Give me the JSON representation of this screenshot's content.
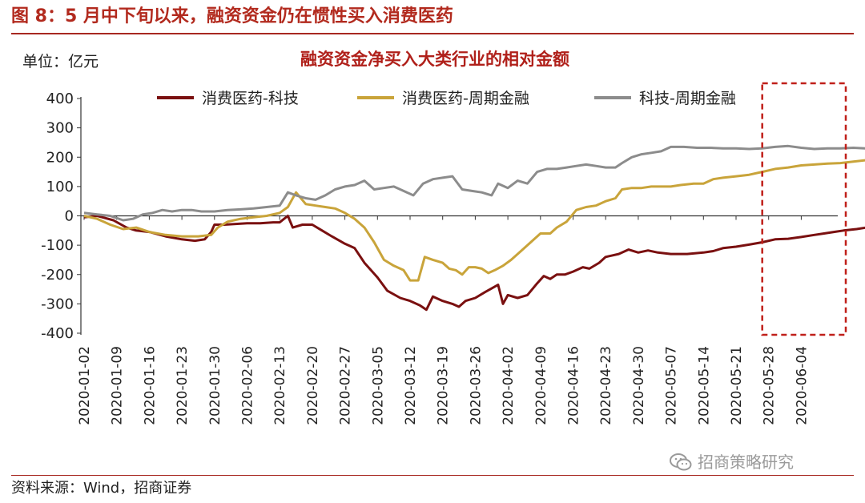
{
  "figure": {
    "title": "图 8：5 月中下旬以来，融资资金仍在惯性买入消费医药",
    "source": "资料来源：Wind，招商证券",
    "watermark": "招商策略研究",
    "watermark_icon": "wechat-icon"
  },
  "chart_data": {
    "type": "line",
    "title": "融资资金净买入大类行业的相对金额",
    "unit_label": "单位：亿元",
    "ylim": [
      -400,
      400
    ],
    "y_ticks": [
      -400,
      -300,
      -200,
      -100,
      0,
      100,
      200,
      300,
      400
    ],
    "x_ticks": [
      "2020-01-02",
      "2020-01-09",
      "2020-01-16",
      "2020-01-23",
      "2020-01-30",
      "2020-02-06",
      "2020-02-13",
      "2020-02-20",
      "2020-02-27",
      "2020-03-05",
      "2020-03-12",
      "2020-03-19",
      "2020-03-26",
      "2020-04-02",
      "2020-04-09",
      "2020-04-16",
      "2020-04-23",
      "2020-04-30",
      "2020-05-07",
      "2020-05-14",
      "2020-05-21",
      "2020-05-28",
      "2020-06-04"
    ],
    "grid": false,
    "legend_position": "top",
    "highlight_box": {
      "x_start": "2020-05-28",
      "x_end": "2020-06-05",
      "color": "#c0201a",
      "style": "dashed"
    },
    "series": [
      {
        "name": "消费医药-科技",
        "color": "#7a1010",
        "points": [
          [
            0,
            -5
          ],
          [
            0.4,
            0
          ],
          [
            0.9,
            -15
          ],
          [
            1.3,
            -40
          ],
          [
            1.6,
            -50
          ],
          [
            2,
            -55
          ],
          [
            2.5,
            -70
          ],
          [
            3,
            -80
          ],
          [
            3.4,
            -85
          ],
          [
            3.7,
            -80
          ],
          [
            3.9,
            -55
          ],
          [
            4,
            -30
          ],
          [
            4.3,
            -30
          ],
          [
            4.6,
            -28
          ],
          [
            5,
            -25
          ],
          [
            5.4,
            -25
          ],
          [
            5.8,
            -22
          ],
          [
            6,
            -22
          ],
          [
            6.25,
            0
          ],
          [
            6.4,
            -40
          ],
          [
            6.7,
            -30
          ],
          [
            7,
            -30
          ],
          [
            7.3,
            -50
          ],
          [
            7.6,
            -70
          ],
          [
            8,
            -95
          ],
          [
            8.3,
            -110
          ],
          [
            8.6,
            -160
          ],
          [
            9,
            -210
          ],
          [
            9.3,
            -255
          ],
          [
            9.7,
            -280
          ],
          [
            10,
            -290
          ],
          [
            10.3,
            -305
          ],
          [
            10.5,
            -320
          ],
          [
            10.7,
            -275
          ],
          [
            11,
            -290
          ],
          [
            11.3,
            -300
          ],
          [
            11.5,
            -310
          ],
          [
            11.7,
            -290
          ],
          [
            12,
            -280
          ],
          [
            12.3,
            -260
          ],
          [
            12.7,
            -235
          ],
          [
            12.85,
            -300
          ],
          [
            13,
            -270
          ],
          [
            13.3,
            -280
          ],
          [
            13.6,
            -270
          ],
          [
            13.9,
            -230
          ],
          [
            14.1,
            -205
          ],
          [
            14.3,
            -215
          ],
          [
            14.5,
            -200
          ],
          [
            14.75,
            -200
          ],
          [
            15,
            -190
          ],
          [
            15.3,
            -175
          ],
          [
            15.5,
            -180
          ],
          [
            15.8,
            -160
          ],
          [
            16,
            -140
          ],
          [
            16.4,
            -130
          ],
          [
            16.7,
            -115
          ],
          [
            17,
            -125
          ],
          [
            17.3,
            -118
          ],
          [
            17.6,
            -125
          ],
          [
            18,
            -130
          ],
          [
            18.5,
            -130
          ],
          [
            19,
            -125
          ],
          [
            19.3,
            -120
          ],
          [
            19.6,
            -110
          ],
          [
            20,
            -105
          ],
          [
            20.4,
            -98
          ],
          [
            20.8,
            -90
          ],
          [
            21.2,
            -80
          ],
          [
            21.6,
            -78
          ],
          [
            22,
            -72
          ],
          [
            22.4,
            -65
          ],
          [
            22.7,
            -60
          ],
          [
            23,
            -55
          ],
          [
            23.3,
            -50
          ],
          [
            23.7,
            -45
          ],
          [
            24,
            -40
          ],
          [
            24.4,
            -35
          ],
          [
            24.8,
            -30
          ],
          [
            25.2,
            -25
          ],
          [
            25.6,
            -22
          ],
          [
            26,
            -17
          ],
          [
            26.3,
            -28
          ],
          [
            26.6,
            -40
          ],
          [
            27,
            -45
          ],
          [
            27.3,
            -45
          ],
          [
            27.6,
            -55
          ],
          [
            28,
            -60
          ],
          [
            28.3,
            -52
          ],
          [
            28.6,
            -60
          ],
          [
            28.9,
            -50
          ],
          [
            29.2,
            -30
          ],
          [
            29.5,
            -20
          ],
          [
            29.8,
            -20
          ],
          [
            30.1,
            -20
          ],
          [
            30.4,
            -18
          ],
          [
            30.7,
            -5
          ],
          [
            31,
            5
          ],
          [
            31.2,
            10
          ]
        ]
      },
      {
        "name": "消费医药-周期金融",
        "color": "#c9a43a",
        "points": [
          [
            0,
            0
          ],
          [
            0.4,
            -10
          ],
          [
            0.8,
            -30
          ],
          [
            1.2,
            -45
          ],
          [
            1.6,
            -40
          ],
          [
            2,
            -55
          ],
          [
            2.5,
            -65
          ],
          [
            3,
            -70
          ],
          [
            3.5,
            -70
          ],
          [
            3.9,
            -65
          ],
          [
            4.1,
            -40
          ],
          [
            4.4,
            -20
          ],
          [
            4.8,
            -10
          ],
          [
            5.2,
            -5
          ],
          [
            5.6,
            0
          ],
          [
            6,
            10
          ],
          [
            6.25,
            30
          ],
          [
            6.5,
            80
          ],
          [
            6.8,
            40
          ],
          [
            7.1,
            35
          ],
          [
            7.4,
            30
          ],
          [
            7.7,
            25
          ],
          [
            8,
            10
          ],
          [
            8.3,
            -10
          ],
          [
            8.6,
            -40
          ],
          [
            8.9,
            -90
          ],
          [
            9.2,
            -150
          ],
          [
            9.5,
            -170
          ],
          [
            9.8,
            -185
          ],
          [
            10,
            -220
          ],
          [
            10.25,
            -220
          ],
          [
            10.45,
            -140
          ],
          [
            10.7,
            -150
          ],
          [
            11,
            -160
          ],
          [
            11.2,
            -180
          ],
          [
            11.4,
            -185
          ],
          [
            11.6,
            -200
          ],
          [
            11.8,
            -175
          ],
          [
            12,
            -175
          ],
          [
            12.2,
            -180
          ],
          [
            12.4,
            -195
          ],
          [
            12.6,
            -185
          ],
          [
            12.85,
            -170
          ],
          [
            13.1,
            -150
          ],
          [
            13.4,
            -120
          ],
          [
            13.7,
            -90
          ],
          [
            14,
            -60
          ],
          [
            14.3,
            -60
          ],
          [
            14.5,
            -40
          ],
          [
            14.8,
            -20
          ],
          [
            15.1,
            20
          ],
          [
            15.4,
            30
          ],
          [
            15.7,
            35
          ],
          [
            16,
            50
          ],
          [
            16.3,
            60
          ],
          [
            16.5,
            90
          ],
          [
            16.8,
            95
          ],
          [
            17.1,
            95
          ],
          [
            17.4,
            100
          ],
          [
            17.7,
            100
          ],
          [
            18,
            100
          ],
          [
            18.3,
            105
          ],
          [
            18.7,
            110
          ],
          [
            19,
            110
          ],
          [
            19.3,
            125
          ],
          [
            19.6,
            130
          ],
          [
            20,
            135
          ],
          [
            20.4,
            140
          ],
          [
            20.8,
            150
          ],
          [
            21.2,
            160
          ],
          [
            21.6,
            165
          ],
          [
            22,
            172
          ],
          [
            22.4,
            175
          ],
          [
            22.8,
            178
          ],
          [
            23.2,
            180
          ],
          [
            23.6,
            185
          ],
          [
            24,
            190
          ],
          [
            24.4,
            190
          ],
          [
            24.8,
            210
          ],
          [
            25.2,
            215
          ],
          [
            25.6,
            225
          ],
          [
            26,
            240
          ],
          [
            26.3,
            230
          ],
          [
            26.6,
            215
          ],
          [
            27,
            215
          ],
          [
            27.3,
            220
          ],
          [
            27.6,
            220
          ],
          [
            28,
            215
          ],
          [
            28.4,
            210
          ],
          [
            28.8,
            205
          ],
          [
            29.2,
            210
          ],
          [
            29.5,
            220
          ],
          [
            29.8,
            225
          ],
          [
            30.2,
            230
          ],
          [
            30.6,
            230
          ],
          [
            31,
            240
          ],
          [
            31.2,
            245
          ]
        ]
      },
      {
        "name": "科技-周期金融",
        "color": "#8c8c8c",
        "points": [
          [
            0,
            10
          ],
          [
            0.4,
            5
          ],
          [
            0.8,
            0
          ],
          [
            1.2,
            -15
          ],
          [
            1.5,
            -10
          ],
          [
            1.8,
            5
          ],
          [
            2.1,
            10
          ],
          [
            2.4,
            20
          ],
          [
            2.7,
            15
          ],
          [
            3,
            20
          ],
          [
            3.3,
            20
          ],
          [
            3.6,
            15
          ],
          [
            4,
            15
          ],
          [
            4.4,
            20
          ],
          [
            4.8,
            22
          ],
          [
            5.2,
            25
          ],
          [
            5.6,
            30
          ],
          [
            6,
            35
          ],
          [
            6.25,
            80
          ],
          [
            6.5,
            70
          ],
          [
            6.8,
            60
          ],
          [
            7.1,
            55
          ],
          [
            7.4,
            70
          ],
          [
            7.7,
            90
          ],
          [
            8,
            100
          ],
          [
            8.3,
            105
          ],
          [
            8.6,
            120
          ],
          [
            8.9,
            90
          ],
          [
            9.2,
            95
          ],
          [
            9.5,
            100
          ],
          [
            9.8,
            85
          ],
          [
            10.1,
            70
          ],
          [
            10.4,
            110
          ],
          [
            10.7,
            125
          ],
          [
            11,
            130
          ],
          [
            11.3,
            135
          ],
          [
            11.6,
            90
          ],
          [
            11.9,
            85
          ],
          [
            12.2,
            80
          ],
          [
            12.5,
            70
          ],
          [
            12.7,
            110
          ],
          [
            13,
            95
          ],
          [
            13.3,
            120
          ],
          [
            13.6,
            110
          ],
          [
            13.9,
            150
          ],
          [
            14.2,
            160
          ],
          [
            14.5,
            160
          ],
          [
            14.8,
            165
          ],
          [
            15.1,
            170
          ],
          [
            15.4,
            175
          ],
          [
            15.7,
            170
          ],
          [
            16,
            165
          ],
          [
            16.3,
            165
          ],
          [
            16.5,
            180
          ],
          [
            16.8,
            200
          ],
          [
            17.1,
            210
          ],
          [
            17.4,
            215
          ],
          [
            17.7,
            220
          ],
          [
            18,
            235
          ],
          [
            18.4,
            235
          ],
          [
            18.8,
            232
          ],
          [
            19.2,
            232
          ],
          [
            19.6,
            230
          ],
          [
            20,
            230
          ],
          [
            20.4,
            228
          ],
          [
            20.8,
            230
          ],
          [
            21.2,
            235
          ],
          [
            21.6,
            238
          ],
          [
            22,
            232
          ],
          [
            22.4,
            228
          ],
          [
            22.8,
            230
          ],
          [
            23.2,
            230
          ],
          [
            23.6,
            232
          ],
          [
            24,
            230
          ],
          [
            24.4,
            235
          ],
          [
            24.8,
            240
          ],
          [
            25.2,
            250
          ],
          [
            25.6,
            255
          ],
          [
            26,
            270
          ],
          [
            26.3,
            260
          ],
          [
            26.6,
            255
          ],
          [
            27,
            258
          ],
          [
            27.3,
            260
          ],
          [
            27.6,
            265
          ],
          [
            28,
            270
          ],
          [
            28.4,
            262
          ],
          [
            28.8,
            265
          ],
          [
            29.2,
            270
          ],
          [
            29.5,
            255
          ],
          [
            29.8,
            250
          ],
          [
            30.2,
            250
          ],
          [
            30.6,
            250
          ],
          [
            31,
            240
          ],
          [
            31.2,
            238
          ]
        ]
      }
    ]
  }
}
